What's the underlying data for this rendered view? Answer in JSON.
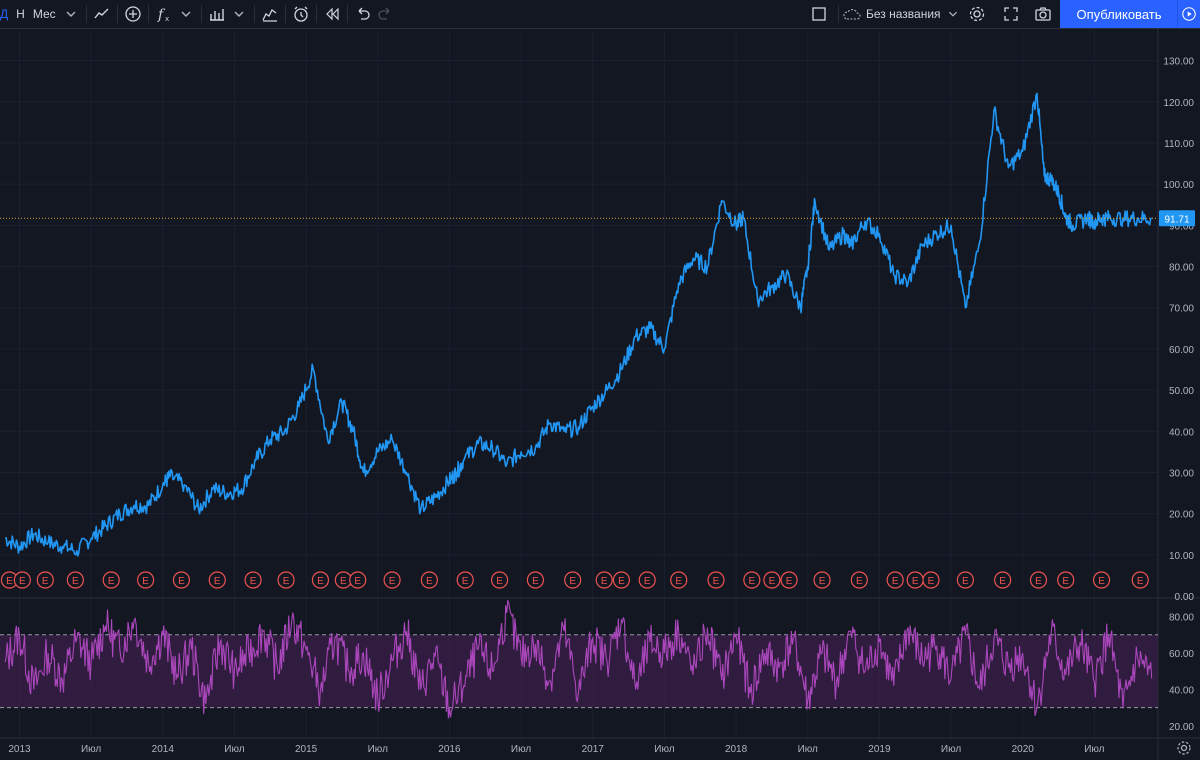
{
  "toolbar": {
    "interval_letter": "Д",
    "interval_h": "Н",
    "interval_month": "Мес",
    "layout_name": "Без названия",
    "publish_label": "Опубликовать"
  },
  "price_axis": {
    "ticks": [
      "130.00",
      "120.00",
      "110.00",
      "100.00",
      "90.00",
      "80.00",
      "70.00",
      "60.00",
      "50.00",
      "40.00",
      "30.00",
      "20.00",
      "10.00",
      "0.00"
    ],
    "current_price": "91.71",
    "current_value": 91.71
  },
  "rsi_axis": {
    "ticks": [
      "80.00",
      "60.00",
      "40.00",
      "20.00"
    ],
    "upper_band": 70,
    "lower_band": 30
  },
  "time_axis": {
    "labels": [
      "2013",
      "Июл",
      "2014",
      "Июл",
      "2015",
      "Июл",
      "2016",
      "Июл",
      "2017",
      "Июл",
      "2018",
      "Июл",
      "2019",
      "Июл",
      "2020",
      "Июл"
    ]
  },
  "earnings_marker": "E",
  "colors": {
    "background": "#131722",
    "price_line": "#2196f3",
    "rsi_line": "#ab47bc",
    "rsi_band": "#3c1f4a",
    "earnings": "#ef5350",
    "current_price_bg": "#2196f3",
    "accent": "#2962ff"
  },
  "chart_data": [
    {
      "type": "line",
      "series": [
        {
          "x": [
            2012.9,
            2013.0,
            2013.1,
            2013.2,
            2013.3,
            2013.4,
            2013.5,
            2013.6,
            2013.7,
            2013.8,
            2013.9,
            2014.0,
            2014.05,
            2014.15,
            2014.25,
            2014.35,
            2014.45,
            2014.55,
            2014.65,
            2014.75,
            2014.85,
            2014.95,
            2015.05,
            2015.15,
            2015.25,
            2015.33,
            2015.4,
            2015.5,
            2015.6,
            2015.7,
            2015.8,
            2015.9,
            2016.0,
            2016.05,
            2016.1,
            2016.2,
            2016.3,
            2016.4,
            2016.5,
            2016.6,
            2016.7,
            2016.8,
            2016.9,
            2017.0,
            2017.1,
            2017.2,
            2017.3,
            2017.4,
            2017.5,
            2017.6,
            2017.7,
            2017.8,
            2017.9,
            2018.0,
            2018.05,
            2018.15,
            2018.25,
            2018.35,
            2018.45,
            2018.5,
            2018.55,
            2018.65,
            2018.75,
            2018.8,
            2018.9,
            2019.0,
            2019.1,
            2019.2,
            2019.3,
            2019.4,
            2019.5,
            2019.6,
            2019.7,
            2019.8,
            2019.9,
            2020.0,
            2020.1,
            2020.15,
            2020.2,
            2020.25,
            2020.3,
            2020.35,
            2020.45,
            2020.5,
            2020.55,
            2020.6,
            2020.7,
            2020.8,
            2020.9
          ],
          "y": [
            14,
            12,
            15,
            13,
            12,
            11,
            14,
            17,
            20,
            22,
            22,
            27,
            29,
            27,
            21,
            26,
            25,
            26,
            33,
            38,
            40,
            46,
            55,
            38,
            47,
            40,
            30,
            35,
            38,
            30,
            21,
            24,
            28,
            30,
            33,
            37,
            36,
            32,
            35,
            36,
            42,
            40,
            41,
            46,
            50,
            55,
            63,
            65,
            60,
            76,
            82,
            80,
            96,
            90,
            92,
            72,
            75,
            78,
            70,
            80,
            96,
            84,
            88,
            85,
            91,
            88,
            78,
            76,
            85,
            88,
            90,
            70,
            86,
            118,
            104,
            108,
            122,
            102,
            101,
            98,
            92,
            90,
            91.71,
            91,
            91.71,
            91.71,
            91.71,
            91.71,
            91.71
          ],
          "name": ""
        }
      ],
      "ylim": [
        0,
        135
      ]
    },
    {
      "type": "line",
      "series": [
        {
          "x": [
            2012.9,
            2013.0,
            2013.1,
            2013.2,
            2013.3,
            2013.4,
            2013.5,
            2013.6,
            2013.7,
            2013.8,
            2013.9,
            2014.0,
            2014.1,
            2014.2,
            2014.3,
            2014.4,
            2014.5,
            2014.6,
            2014.7,
            2014.8,
            2014.9,
            2015.0,
            2015.1,
            2015.2,
            2015.3,
            2015.4,
            2015.5,
            2015.6,
            2015.7,
            2015.8,
            2015.9,
            2016.0,
            2016.1,
            2016.2,
            2016.3,
            2016.4,
            2016.5,
            2016.6,
            2016.7,
            2016.8,
            2016.9,
            2017.0,
            2017.1,
            2017.2,
            2017.3,
            2017.4,
            2017.5,
            2017.6,
            2017.7,
            2017.8,
            2017.9,
            2018.0,
            2018.1,
            2018.2,
            2018.3,
            2018.4,
            2018.5,
            2018.6,
            2018.7,
            2018.8,
            2018.9,
            2019.0,
            2019.1,
            2019.2,
            2019.3,
            2019.4,
            2019.5,
            2019.6,
            2019.7,
            2019.8,
            2019.9,
            2020.0,
            2020.1,
            2020.2,
            2020.3,
            2020.4,
            2020.5,
            2020.6,
            2020.7,
            2020.8,
            2020.9
          ],
          "y": [
            55,
            70,
            40,
            60,
            45,
            68,
            55,
            75,
            62,
            78,
            55,
            70,
            48,
            62,
            32,
            66,
            50,
            60,
            72,
            52,
            78,
            62,
            40,
            68,
            50,
            60,
            35,
            56,
            72,
            40,
            58,
            30,
            42,
            62,
            50,
            82,
            58,
            65,
            45,
            72,
            38,
            68,
            55,
            78,
            40,
            66,
            60,
            72,
            48,
            74,
            45,
            70,
            38,
            60,
            52,
            68,
            34,
            60,
            44,
            72,
            50,
            66,
            42,
            74,
            56,
            64,
            46,
            70,
            40,
            68,
            52,
            60,
            30,
            72,
            48,
            66,
            44,
            70,
            30,
            58,
            46
          ],
          "name": ""
        }
      ],
      "ylim": [
        15,
        88
      ]
    }
  ]
}
